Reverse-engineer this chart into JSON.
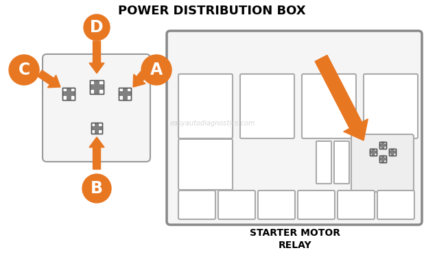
{
  "title": "POWER DISTRIBUTION BOX",
  "subtitle": "STARTER MOTOR\nRELAY",
  "bg_color": "#ffffff",
  "orange": "#E87722",
  "pin_gray": "#808080",
  "pin_edge": "#555555",
  "box_face": "#f8f8f8",
  "box_edge": "#888888",
  "inner_face": "#ffffff",
  "inner_edge": "#aaaaaa",
  "relay_face": "#eeeeee",
  "watermark": "easyautodiagnostics.com",
  "watermark_color": "#cccccc"
}
